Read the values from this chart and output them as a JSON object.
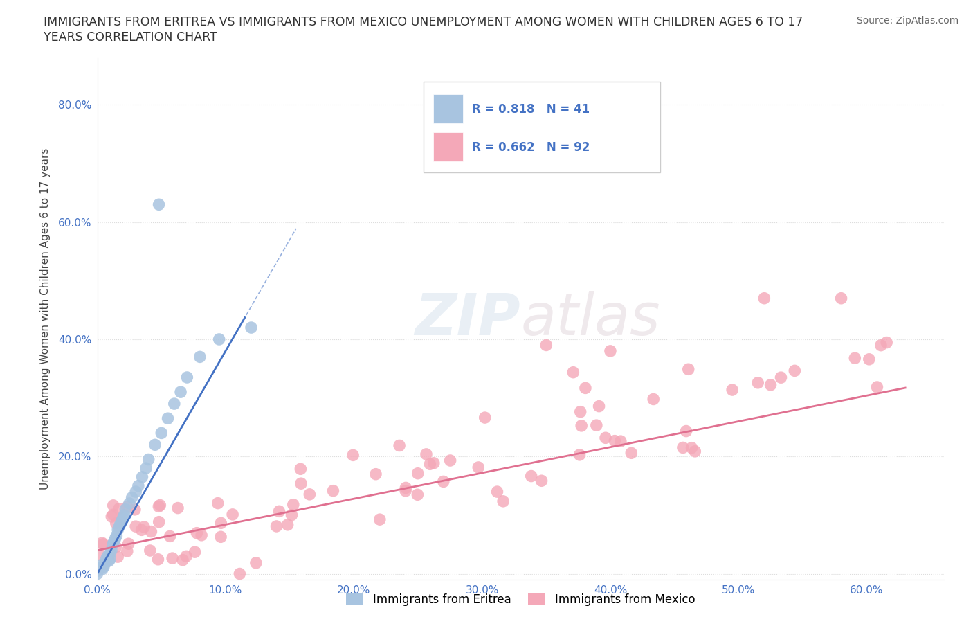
{
  "title_line1": "IMMIGRANTS FROM ERITREA VS IMMIGRANTS FROM MEXICO UNEMPLOYMENT AMONG WOMEN WITH CHILDREN AGES 6 TO 17",
  "title_line2": "YEARS CORRELATION CHART",
  "source": "Source: ZipAtlas.com",
  "ylabel": "Unemployment Among Women with Children Ages 6 to 17 years",
  "xlabel_ticks": [
    "0.0%",
    "10.0%",
    "20.0%",
    "30.0%",
    "40.0%",
    "50.0%",
    "60.0%"
  ],
  "ylabel_ticks": [
    "0.0%",
    "20.0%",
    "40.0%",
    "60.0%",
    "80.0%"
  ],
  "xlim": [
    0.0,
    0.66
  ],
  "ylim": [
    -0.01,
    0.88
  ],
  "eritrea_R": 0.818,
  "eritrea_N": 41,
  "mexico_R": 0.662,
  "mexico_N": 92,
  "eritrea_color": "#a8c4e0",
  "mexico_color": "#f4a8b8",
  "eritrea_line_color": "#4472c4",
  "mexico_line_color": "#e07090",
  "background_color": "#ffffff",
  "grid_color": "#dddddd",
  "watermark_part1": "ZIP",
  "watermark_part2": "atlas",
  "eritrea_label": "Immigrants from Eritrea",
  "mexico_label": "Immigrants from Mexico"
}
